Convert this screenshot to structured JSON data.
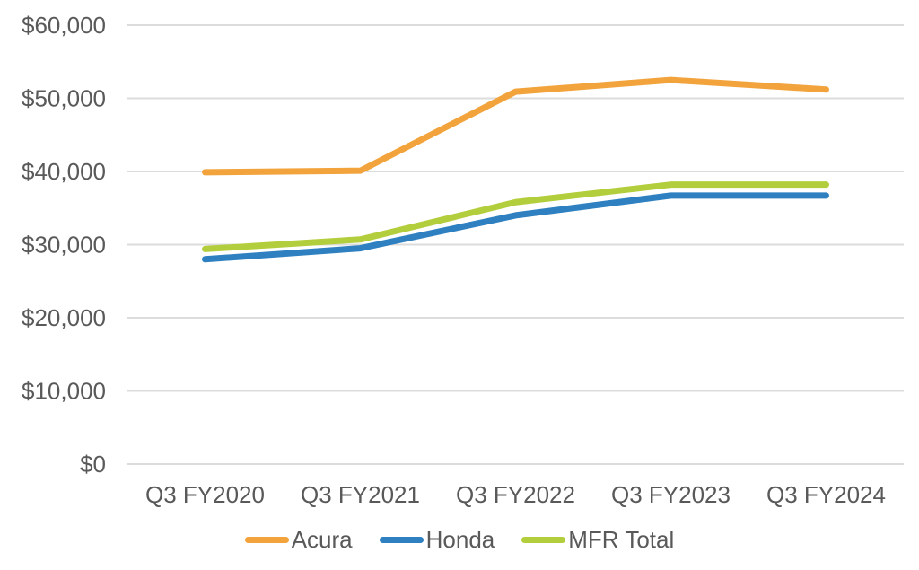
{
  "chart_data": {
    "type": "line",
    "categories": [
      "Q3 FY2020",
      "Q3 FY2021",
      "Q3 FY2022",
      "Q3 FY2023",
      "Q3 FY2024"
    ],
    "series": [
      {
        "name": "Acura",
        "color": "#F2A33C",
        "values": [
          39900,
          40100,
          50900,
          52500,
          51200
        ]
      },
      {
        "name": "Honda",
        "color": "#2E80C0",
        "values": [
          28000,
          29500,
          34000,
          36700,
          36700
        ]
      },
      {
        "name": "MFR Total",
        "color": "#B3CE3C",
        "values": [
          29400,
          30700,
          35800,
          38200,
          38200
        ]
      }
    ],
    "title": "",
    "xlabel": "",
    "ylabel": "",
    "ylim": [
      0,
      60000
    ],
    "ytick_step": 10000,
    "ytick_labels": [
      "$0",
      "$10,000",
      "$20,000",
      "$30,000",
      "$40,000",
      "$50,000",
      "$60,000"
    ],
    "grid": true,
    "legend_position": "bottom"
  },
  "style": {
    "text_color": "#595959",
    "gridline_color": "#DCDCDC",
    "background": "#FFFFFF",
    "tick_font_size": 26,
    "line_width": 7
  }
}
